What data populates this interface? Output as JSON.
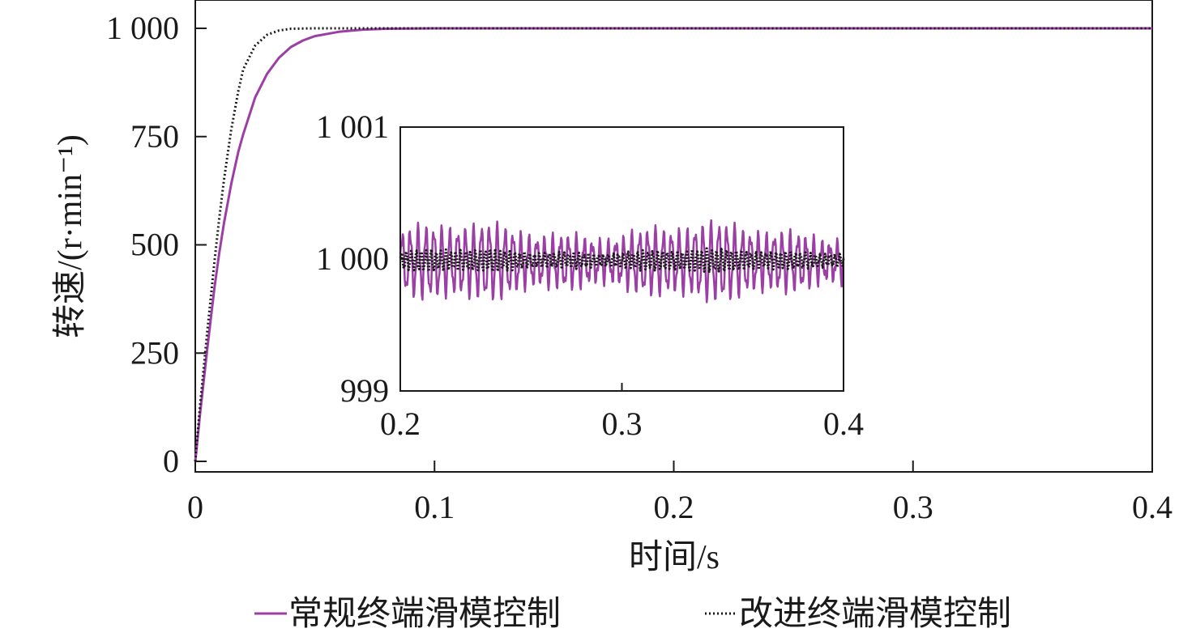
{
  "chart_data": {
    "type": "line",
    "title": "",
    "xlabel": "时间/s",
    "ylabel": "转速/(r·min⁻¹)",
    "xlim": [
      0,
      0.4
    ],
    "ylim": [
      0,
      1000
    ],
    "x_ticks": [
      0,
      0.1,
      0.2,
      0.3,
      0.4
    ],
    "x_tick_labels": [
      "0",
      "0.1",
      "0.2",
      "0.3",
      "0.4"
    ],
    "y_ticks": [
      0,
      250,
      500,
      750,
      1000
    ],
    "y_tick_labels": [
      "0",
      "250",
      "500",
      "750",
      "1 000"
    ],
    "grid": false,
    "legend_position": "bottom",
    "series": [
      {
        "name": "常规终端滑模控制",
        "color": "#9b3fa5",
        "style": "solid",
        "x": [
          0,
          0.002,
          0.005,
          0.008,
          0.01,
          0.012,
          0.015,
          0.018,
          0.02,
          0.025,
          0.03,
          0.035,
          0.04,
          0.045,
          0.05,
          0.06,
          0.07,
          0.08,
          0.1,
          0.2,
          0.3,
          0.4
        ],
        "y": [
          0,
          110,
          260,
          400,
          480,
          550,
          640,
          715,
          755,
          840,
          895,
          932,
          957,
          972,
          982,
          992,
          997,
          999,
          1000,
          1000,
          1000,
          1000
        ]
      },
      {
        "name": "改进终端滑模控制",
        "color": "#1a1a1a",
        "style": "dotted",
        "x": [
          0,
          0.002,
          0.005,
          0.008,
          0.01,
          0.012,
          0.015,
          0.018,
          0.02,
          0.025,
          0.03,
          0.035,
          0.04,
          0.05,
          0.06,
          0.1,
          0.2,
          0.3,
          0.4
        ],
        "y": [
          0,
          130,
          300,
          460,
          560,
          650,
          765,
          855,
          905,
          960,
          985,
          995,
          999,
          1000,
          1000,
          1000,
          1000,
          1000,
          1000
        ]
      }
    ],
    "inset": {
      "type": "line",
      "xlim": [
        0.2,
        0.4
      ],
      "ylim": [
        999,
        1001
      ],
      "x_ticks": [
        0.2,
        0.3,
        0.4
      ],
      "x_tick_labels": [
        "0.2",
        "0.3",
        "0.4"
      ],
      "y_ticks": [
        999,
        1000,
        1001
      ],
      "y_tick_labels": [
        "999",
        "1 000",
        "1 001"
      ],
      "series": [
        {
          "name": "常规终端滑模控制",
          "color": "#9b3fa5",
          "style": "solid",
          "center": 999.98,
          "oscillation_amplitude": 0.24,
          "oscillation_cycles": 56
        },
        {
          "name": "改进终端滑模控制",
          "color": "#1a1a1a",
          "style": "dotted",
          "center": 999.99,
          "oscillation_amplitude": 0.07,
          "oscillation_cycles": 90
        }
      ]
    }
  }
}
